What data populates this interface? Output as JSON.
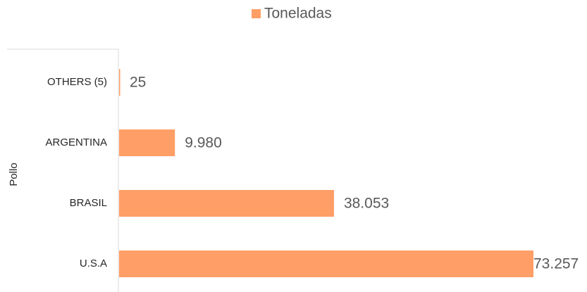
{
  "chart_data": {
    "type": "bar",
    "orientation": "horizontal",
    "legend": "Toneladas",
    "y_axis_label": "Pollo",
    "categories": [
      "OTHERS (5)",
      "ARGENTINA",
      "BRASIL",
      "U.S.A"
    ],
    "series": [
      {
        "name": "Toneladas",
        "color": "#ff9e66",
        "values": [
          25,
          9980,
          38053,
          73257
        ],
        "value_labels": [
          "25",
          "9.980",
          "38.053",
          "73.257"
        ]
      }
    ],
    "legend_position": "top"
  }
}
